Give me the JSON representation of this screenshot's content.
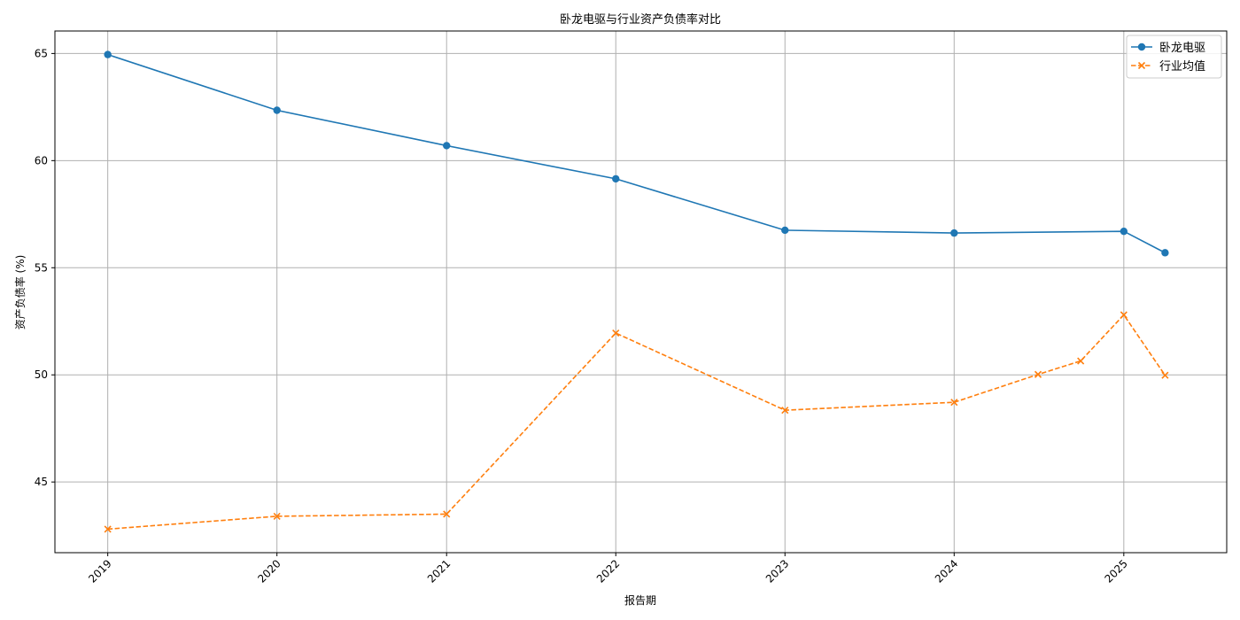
{
  "chart_data": {
    "type": "line",
    "title": "卧龙电驱与行业资产负债率对比",
    "xlabel": "报告期",
    "ylabel": "资产负债率 (%)",
    "xlim": [
      "2018-09-09",
      "2025-08-11"
    ],
    "ylim": [
      41.7,
      66.05
    ],
    "x_ticks": [
      "2019",
      "2020",
      "2021",
      "2022",
      "2023",
      "2024",
      "2025"
    ],
    "y_ticks": [
      45,
      50,
      55,
      60,
      65
    ],
    "grid": true,
    "legend_position": "top-right",
    "series": [
      {
        "name": "卧龙电驱",
        "color": "#1f77b4",
        "line_style": "solid",
        "marker": "circle",
        "points": [
          {
            "x": "2019-01-01",
            "y": 64.95
          },
          {
            "x": "2020-01-01",
            "y": 62.35
          },
          {
            "x": "2021-01-01",
            "y": 60.7
          },
          {
            "x": "2022-01-01",
            "y": 59.15
          },
          {
            "x": "2023-01-01",
            "y": 56.75
          },
          {
            "x": "2024-01-01",
            "y": 56.62
          },
          {
            "x": "2025-01-01",
            "y": 56.7
          },
          {
            "x": "2025-03-31",
            "y": 55.7
          }
        ]
      },
      {
        "name": "行业均值",
        "color": "#ff7f0e",
        "line_style": "dashed",
        "marker": "x",
        "points": [
          {
            "x": "2019-01-01",
            "y": 42.8
          },
          {
            "x": "2020-01-01",
            "y": 43.4
          },
          {
            "x": "2021-01-01",
            "y": 43.5
          },
          {
            "x": "2022-01-01",
            "y": 51.95
          },
          {
            "x": "2023-01-01",
            "y": 48.35
          },
          {
            "x": "2024-01-01",
            "y": 48.72
          },
          {
            "x": "2024-06-30",
            "y": 50.02
          },
          {
            "x": "2024-09-30",
            "y": 50.65
          },
          {
            "x": "2025-01-01",
            "y": 52.8
          },
          {
            "x": "2025-03-31",
            "y": 49.98
          }
        ]
      }
    ]
  }
}
